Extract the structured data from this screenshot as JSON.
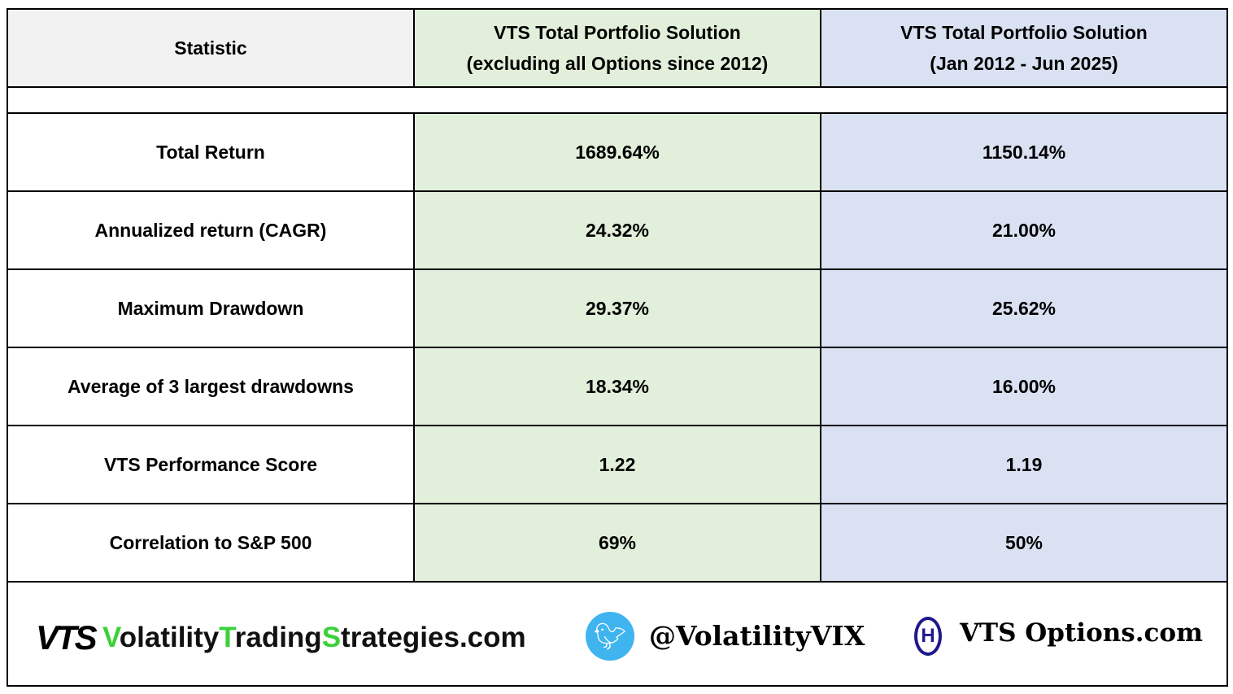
{
  "header": {
    "statistic": "Statistic",
    "col1_line1": "VTS Total Portfolio Solution",
    "col1_line2": "(excluding all Options since 2012)",
    "col2_line1": "VTS Total Portfolio Solution",
    "col2_line2": "(Jan 2012 -  Jun 2025)"
  },
  "rows": [
    {
      "label": "Total Return",
      "col1": "1689.64%",
      "col2": "1150.14%"
    },
    {
      "label": "Annualized return  (CAGR)",
      "col1": "24.32%",
      "col2": "21.00%"
    },
    {
      "label": "Maximum Drawdown",
      "col1": "29.37%",
      "col2": "25.62%"
    },
    {
      "label": "Average of 3 largest drawdowns",
      "col1": "18.34%",
      "col2": "16.00%"
    },
    {
      "label": "VTS Performance Score",
      "col1": "1.22",
      "col2": "1.19"
    },
    {
      "label": "Correlation to S&P 500",
      "col1": "69%",
      "col2": "50%"
    }
  ],
  "footer": {
    "logo_text": "VTS",
    "site_parts": [
      "V",
      "olatility",
      "T",
      "rading",
      "S",
      "trategies.com"
    ],
    "twitter_handle": "@VolatilityVIX",
    "options_site": "VTS Options.com"
  },
  "colors": {
    "header_gray": "#f2f2f2",
    "green": "#e2efda",
    "blue": "#d9e1f2",
    "brand_green": "#3ad13a",
    "twitter": "#3fb4ef",
    "options_blue": "#1e1a8c"
  }
}
